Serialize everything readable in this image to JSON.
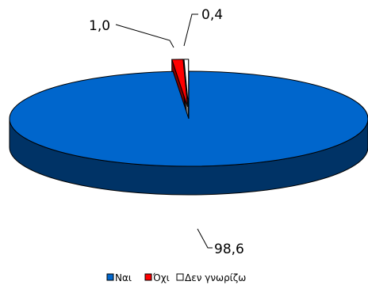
{
  "chart_data": {
    "type": "pie",
    "style": "3d-exploded",
    "slices": [
      {
        "name": "Ναι",
        "value": 98.6,
        "label": "98,6",
        "color": "#0066CC",
        "side_color": "#003366"
      },
      {
        "name": "Όχι",
        "value": 1.0,
        "label": "1,0",
        "color": "#FF0000",
        "side_color": "#800000"
      },
      {
        "name": "Δεν γνωρίζω",
        "value": 0.4,
        "label": "0,4",
        "color": "#FFFFFF",
        "side_color": "#808080"
      }
    ],
    "legend_position": "bottom-center"
  }
}
